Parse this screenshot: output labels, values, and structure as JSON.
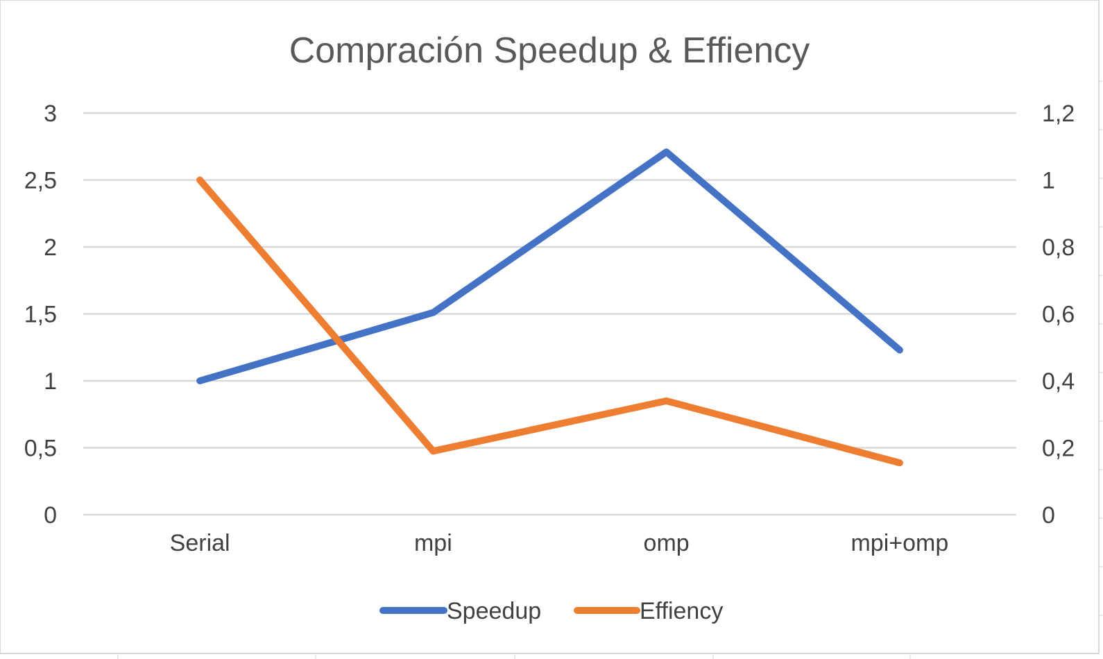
{
  "chart_data": {
    "type": "line",
    "title": "Compración Speedup & Effiency",
    "categories": [
      "Serial",
      "mpi",
      "omp",
      "mpi+omp"
    ],
    "series": [
      {
        "name": "Speedup",
        "axis": "left",
        "color": "#4472C4",
        "values": [
          1.0,
          1.51,
          2.71,
          1.23
        ]
      },
      {
        "name": "Effiency",
        "axis": "right",
        "color": "#ED7D31",
        "values": [
          1.0,
          0.19,
          0.34,
          0.155
        ]
      }
    ],
    "y_left": {
      "min": 0,
      "max": 3,
      "ticks": [
        0,
        0.5,
        1,
        1.5,
        2,
        2.5,
        3
      ],
      "tick_labels": [
        "0",
        "0,5",
        "1",
        "1,5",
        "2",
        "2,5",
        "3"
      ]
    },
    "y_right": {
      "min": 0,
      "max": 1.2,
      "ticks": [
        0,
        0.2,
        0.4,
        0.6,
        0.8,
        1,
        1.2
      ],
      "tick_labels": [
        "0",
        "0,2",
        "0,4",
        "0,6",
        "0,8",
        "1",
        "1,2"
      ]
    },
    "grid": true,
    "legend_position": "bottom"
  }
}
